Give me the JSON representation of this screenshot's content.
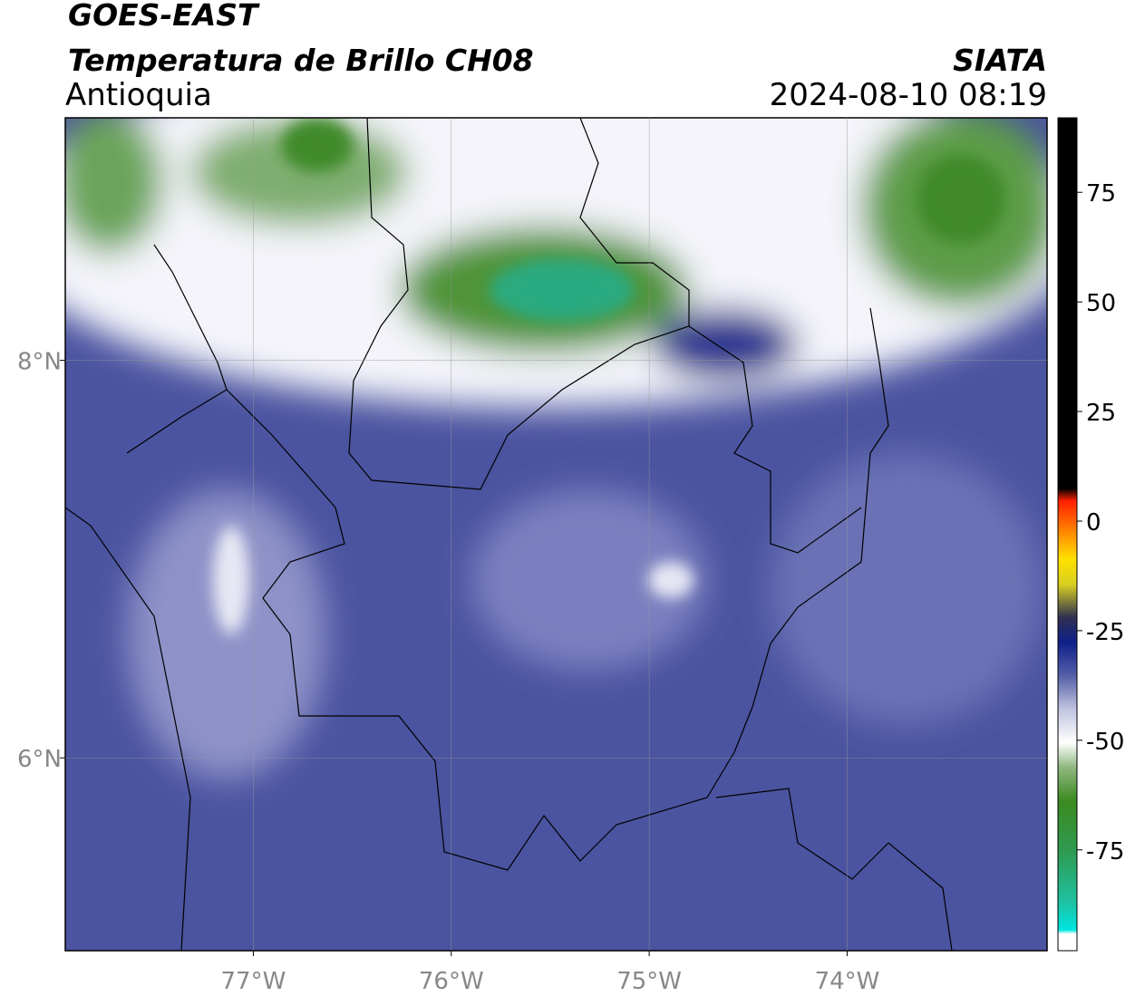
{
  "header": {
    "title": "GOES-EAST",
    "subtitle": "Temperatura de Brillo CH08",
    "region": "Antioquia",
    "source": "SIATA",
    "timestamp": "2024-08-10 08:19"
  },
  "map": {
    "xlim": [
      -77.95,
      -72.99
    ],
    "ylim": [
      5.03,
      9.22
    ],
    "lon_ticks": [
      {
        "value": -77,
        "label": "77°W"
      },
      {
        "value": -76,
        "label": "76°W"
      },
      {
        "value": -75,
        "label": "75°W"
      },
      {
        "value": -74,
        "label": "74°W"
      }
    ],
    "lat_ticks": [
      {
        "value": 8,
        "label": "8°N"
      },
      {
        "value": 6,
        "label": "6°N"
      }
    ]
  },
  "colorbar": {
    "lim": [
      -98,
      92
    ],
    "ticks": [
      75,
      50,
      25,
      0,
      -25,
      -50,
      -75
    ]
  }
}
